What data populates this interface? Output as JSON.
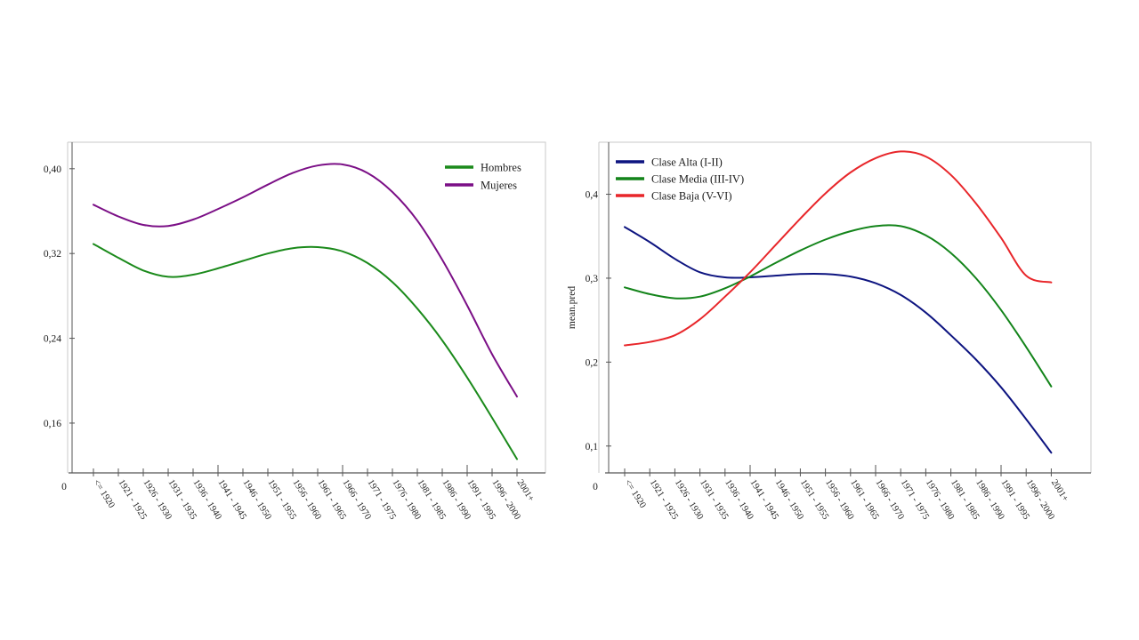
{
  "chart_data": [
    {
      "type": "line",
      "title": "",
      "xlabel": "",
      "ylabel": "",
      "origin_label": "0",
      "ylim": [
        0.113,
        0.425
      ],
      "yticks": [
        0.16,
        0.24,
        0.32,
        0.4
      ],
      "ytick_labels": [
        "0,16",
        "0,24",
        "0,32",
        "0,40"
      ],
      "categories": [
        "<= 1920",
        "1921 - 1925",
        "1926 - 1930",
        "1931 - 1935",
        "1936 - 1940",
        "1941 - 1945",
        "1946 - 1950",
        "1951 - 1955",
        "1956 - 1960",
        "1961 - 1965",
        "1966 - 1970",
        "1971 - 1975",
        "1976 - 1980",
        "1981 - 1985",
        "1986 - 1990",
        "1991 - 1995",
        "1996 - 2000",
        "2001+"
      ],
      "legend_position": "top-right",
      "grid": false,
      "series": [
        {
          "name": "Hombres",
          "color": "#1b8a1b",
          "values": [
            0.329,
            0.316,
            0.304,
            0.298,
            0.3,
            0.306,
            0.313,
            0.32,
            0.325,
            0.326,
            0.322,
            0.311,
            0.293,
            0.268,
            0.238,
            0.203,
            0.165,
            0.126
          ]
        },
        {
          "name": "Mujeres",
          "color": "#7b0f86",
          "values": [
            0.366,
            0.355,
            0.347,
            0.346,
            0.352,
            0.362,
            0.373,
            0.385,
            0.396,
            0.403,
            0.404,
            0.396,
            0.378,
            0.351,
            0.314,
            0.271,
            0.225,
            0.185
          ]
        }
      ]
    },
    {
      "type": "line",
      "title": "",
      "xlabel": "",
      "ylabel": "mean.pred",
      "origin_label": "0",
      "ylim": [
        0.068,
        0.462
      ],
      "yticks": [
        0.1,
        0.2,
        0.3,
        0.4
      ],
      "ytick_labels": [
        "0,1",
        "0,2",
        "0,3",
        "0,4"
      ],
      "categories": [
        "<= 1920",
        "1921 - 1925",
        "1926 - 1930",
        "1931 - 1935",
        "1936 - 1940",
        "1941 - 1945",
        "1946 - 1950",
        "1951 - 1955",
        "1956 - 1960",
        "1961 - 1965",
        "1966 - 1970",
        "1971 - 1975",
        "1976 - 1980",
        "1981 - 1985",
        "1986 - 1990",
        "1991 - 1995",
        "1996 - 2000",
        "2001+"
      ],
      "legend_position": "top-left",
      "grid": false,
      "series": [
        {
          "name": "Clase Alta (I-II)",
          "color": "#0d1480",
          "values": [
            0.361,
            0.343,
            0.323,
            0.307,
            0.301,
            0.301,
            0.303,
            0.305,
            0.305,
            0.302,
            0.294,
            0.28,
            0.259,
            0.232,
            0.203,
            0.17,
            0.132,
            0.092
          ]
        },
        {
          "name": "Clase Media (III-IV)",
          "color": "#13841a",
          "values": [
            0.289,
            0.281,
            0.276,
            0.278,
            0.288,
            0.302,
            0.318,
            0.333,
            0.346,
            0.356,
            0.362,
            0.362,
            0.351,
            0.33,
            0.3,
            0.262,
            0.218,
            0.171
          ]
        },
        {
          "name": "Clase Baja (V-VI)",
          "color": "#e8262a",
          "values": [
            0.22,
            0.224,
            0.232,
            0.251,
            0.278,
            0.307,
            0.339,
            0.371,
            0.401,
            0.426,
            0.443,
            0.451,
            0.445,
            0.423,
            0.389,
            0.348,
            0.303,
            0.295
          ]
        }
      ]
    }
  ]
}
